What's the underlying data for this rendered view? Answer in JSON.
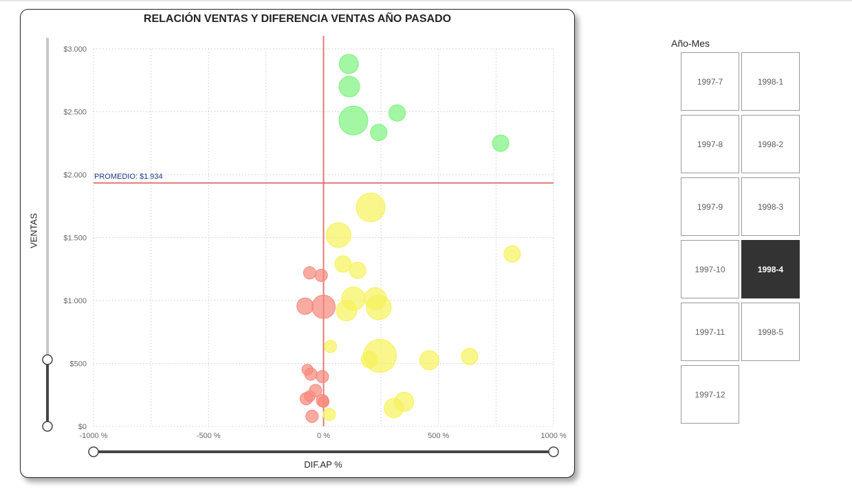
{
  "chart_data": {
    "type": "scatter",
    "title": "RELACIÓN VENTAS Y DIFERENCIA VENTAS AÑO PASADO",
    "xlabel": "DIF.AP %",
    "ylabel": "VENTAS",
    "xlim": [
      -1000,
      1000
    ],
    "ylim": [
      0,
      3000
    ],
    "x_ticks": [
      {
        "value": -1000,
        "label": "-1000 %"
      },
      {
        "value": -500,
        "label": "-500 %"
      },
      {
        "value": 0,
        "label": "0 %"
      },
      {
        "value": 500,
        "label": "500 %"
      },
      {
        "value": 1000,
        "label": "1000 %"
      }
    ],
    "y_ticks": [
      {
        "value": 0,
        "label": "$0"
      },
      {
        "value": 500,
        "label": "$500"
      },
      {
        "value": 1000,
        "label": "$1.000"
      },
      {
        "value": 1500,
        "label": "$1.500"
      },
      {
        "value": 2000,
        "label": "$2.000"
      },
      {
        "value": 2500,
        "label": "$2.500"
      },
      {
        "value": 3000,
        "label": "$3.000"
      }
    ],
    "grid": true,
    "reference_lines": {
      "average": {
        "value": 1934,
        "label": "PROMEDIO: $1.934",
        "color": "#e05a5a"
      },
      "x_zero": {
        "value": 0,
        "color": "#e05a5a"
      }
    },
    "colors": {
      "above_average": "#7cf27c",
      "positive": "#f7f25a",
      "negative": "#f7877a"
    },
    "points": [
      {
        "x": 110,
        "y": 2880,
        "size": 14,
        "color": "above_average"
      },
      {
        "x": 112,
        "y": 2700,
        "size": 15,
        "color": "above_average"
      },
      {
        "x": 130,
        "y": 2430,
        "size": 21,
        "color": "above_average"
      },
      {
        "x": 320,
        "y": 2490,
        "size": 12,
        "color": "above_average"
      },
      {
        "x": 240,
        "y": 2335,
        "size": 12,
        "color": "above_average"
      },
      {
        "x": 770,
        "y": 2250,
        "size": 12,
        "color": "above_average"
      },
      {
        "x": 205,
        "y": 1740,
        "size": 21,
        "color": "positive"
      },
      {
        "x": 65,
        "y": 1520,
        "size": 18,
        "color": "positive"
      },
      {
        "x": 820,
        "y": 1370,
        "size": 12,
        "color": "positive"
      },
      {
        "x": 85,
        "y": 1290,
        "size": 12,
        "color": "positive"
      },
      {
        "x": 148,
        "y": 1240,
        "size": 12,
        "color": "positive"
      },
      {
        "x": 130,
        "y": 1015,
        "size": 17,
        "color": "positive"
      },
      {
        "x": 225,
        "y": 1015,
        "size": 16,
        "color": "positive"
      },
      {
        "x": 100,
        "y": 920,
        "size": 15,
        "color": "positive"
      },
      {
        "x": 240,
        "y": 945,
        "size": 18,
        "color": "positive"
      },
      {
        "x": 30,
        "y": 635,
        "size": 9,
        "color": "positive"
      },
      {
        "x": 245,
        "y": 560,
        "size": 24,
        "color": "positive"
      },
      {
        "x": 200,
        "y": 530,
        "size": 12,
        "color": "positive"
      },
      {
        "x": 460,
        "y": 525,
        "size": 14,
        "color": "positive"
      },
      {
        "x": 635,
        "y": 555,
        "size": 12,
        "color": "positive"
      },
      {
        "x": 350,
        "y": 195,
        "size": 14,
        "color": "positive"
      },
      {
        "x": 305,
        "y": 145,
        "size": 14,
        "color": "positive"
      },
      {
        "x": 25,
        "y": 95,
        "size": 9,
        "color": "positive"
      },
      {
        "x": -60,
        "y": 1220,
        "size": 9,
        "color": "negative"
      },
      {
        "x": -10,
        "y": 1200,
        "size": 9,
        "color": "negative"
      },
      {
        "x": -80,
        "y": 955,
        "size": 12,
        "color": "negative"
      },
      {
        "x": 0,
        "y": 950,
        "size": 17,
        "color": "negative"
      },
      {
        "x": -70,
        "y": 450,
        "size": 8,
        "color": "negative"
      },
      {
        "x": -55,
        "y": 415,
        "size": 9,
        "color": "negative"
      },
      {
        "x": -5,
        "y": 395,
        "size": 9,
        "color": "negative"
      },
      {
        "x": -35,
        "y": 285,
        "size": 9,
        "color": "negative"
      },
      {
        "x": -60,
        "y": 240,
        "size": 8,
        "color": "negative"
      },
      {
        "x": -75,
        "y": 220,
        "size": 9,
        "color": "negative"
      },
      {
        "x": -5,
        "y": 205,
        "size": 9,
        "color": "negative"
      },
      {
        "x": 0,
        "y": 195,
        "size": 8,
        "color": "negative"
      },
      {
        "x": -50,
        "y": 80,
        "size": 9,
        "color": "negative"
      }
    ]
  },
  "slicer": {
    "title": "Año-Mes",
    "items": [
      {
        "label": "1997-7",
        "selected": false
      },
      {
        "label": "1998-1",
        "selected": false
      },
      {
        "label": "1997-8",
        "selected": false
      },
      {
        "label": "1998-2",
        "selected": false
      },
      {
        "label": "1997-9",
        "selected": false
      },
      {
        "label": "1998-3",
        "selected": false
      },
      {
        "label": "1997-10",
        "selected": false
      },
      {
        "label": "1998-4",
        "selected": true
      },
      {
        "label": "1997-11",
        "selected": false
      },
      {
        "label": "1998-5",
        "selected": false
      },
      {
        "label": "1997-12",
        "selected": false
      }
    ]
  }
}
